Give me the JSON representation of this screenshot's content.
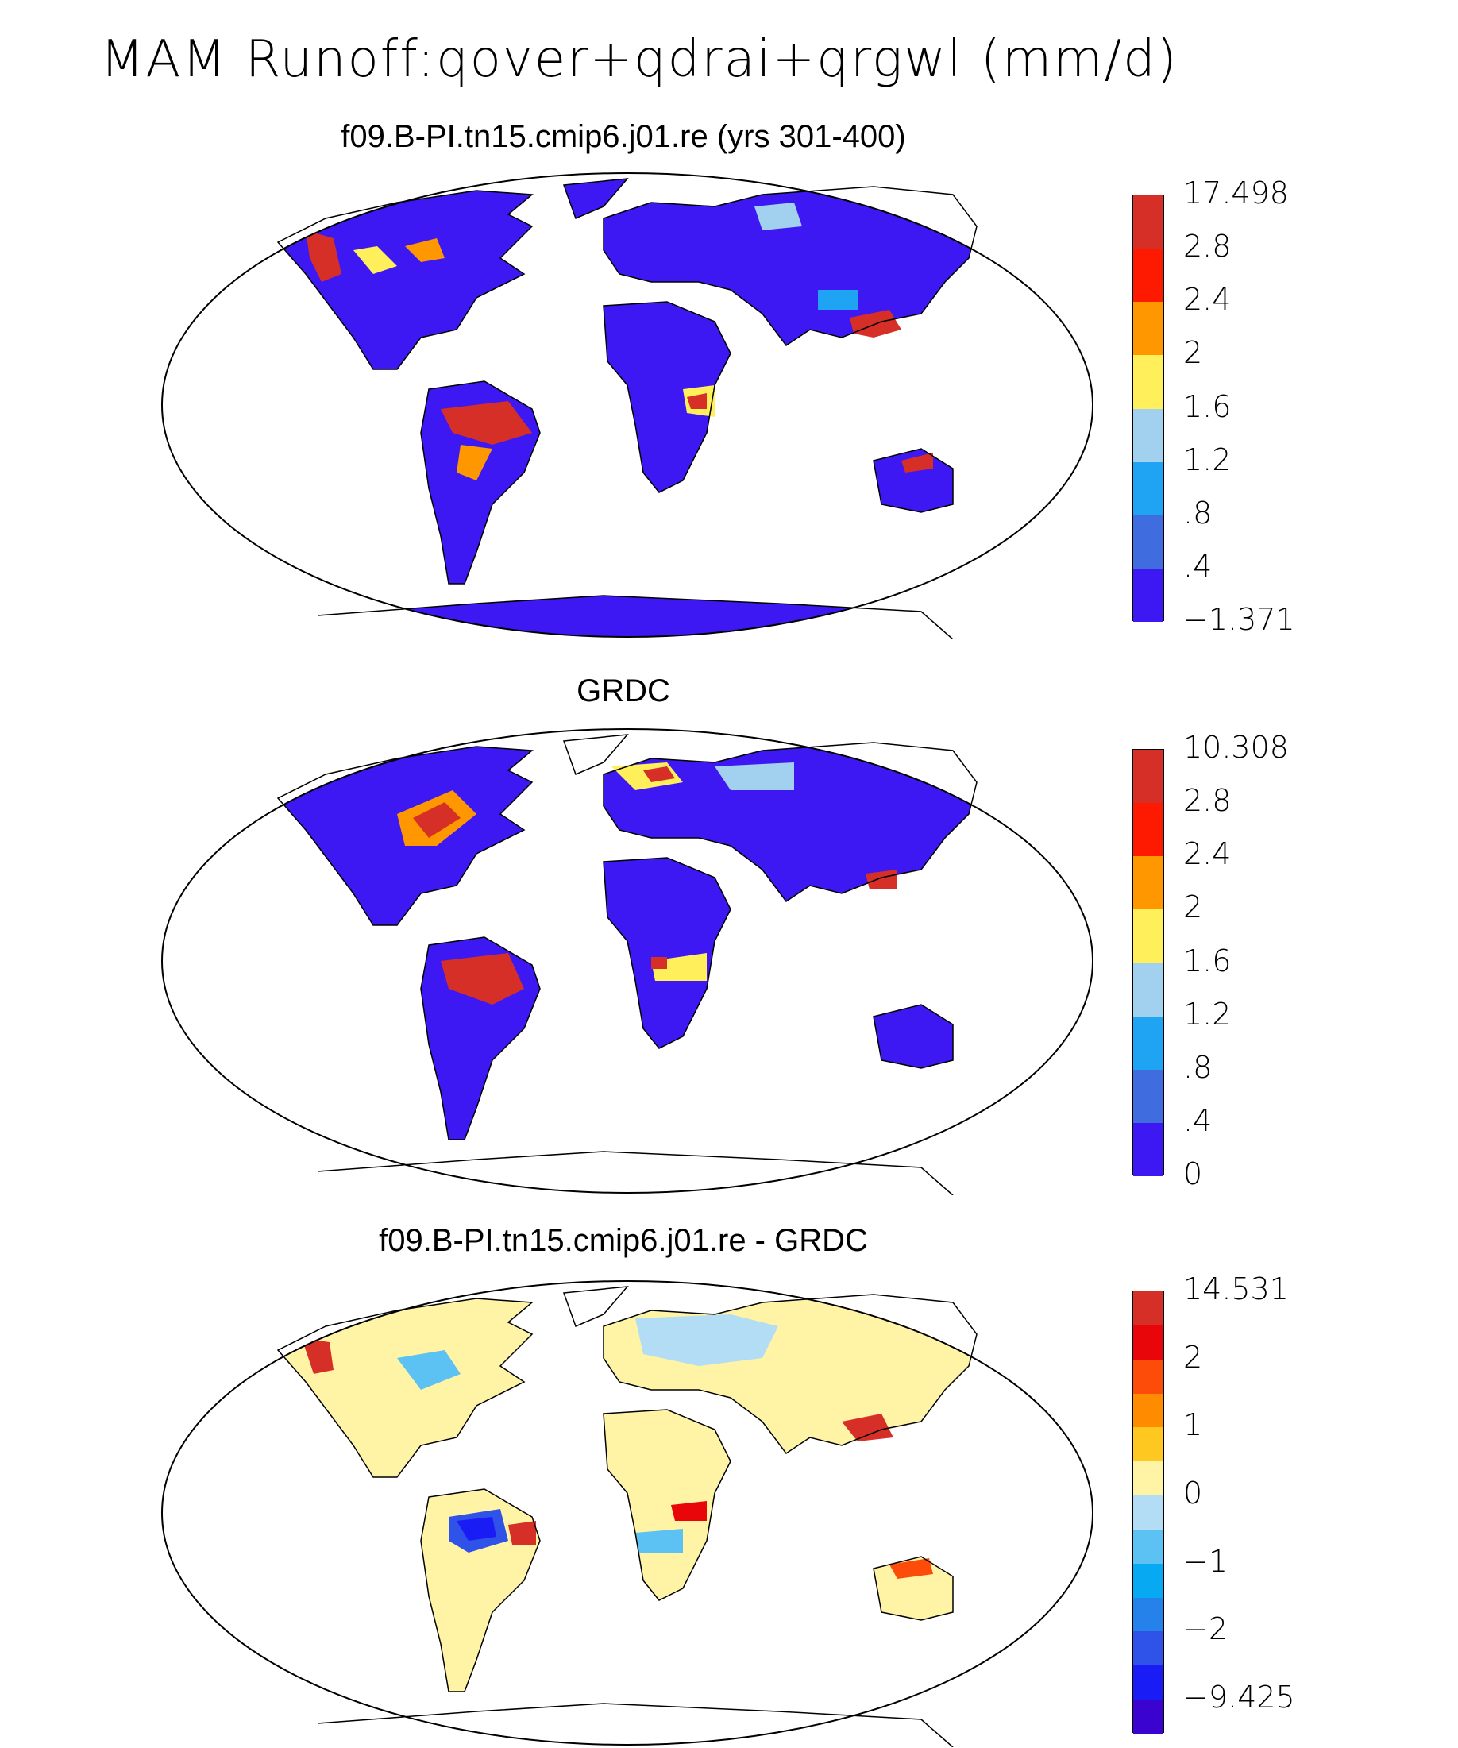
{
  "title": "MAM Runoff:qover+qdrai+qrgwl (mm/d)",
  "panels": [
    {
      "id": "model",
      "subtitle": "f09.B-PI.tn15.cmip6.j01.re (yrs 301-400)",
      "colorbar": {
        "colors": [
          "#d62f27",
          "#fd1a00",
          "#ff9800",
          "#ffef5a",
          "#a2d1ef",
          "#1ea4f3",
          "#3f6de0",
          "#3e18f2"
        ],
        "labels": [
          "17.498",
          "2.8",
          "2.4",
          "2",
          "1.6",
          "1.2",
          ".8",
          ".4",
          "−1.371"
        ]
      }
    },
    {
      "id": "obs",
      "subtitle": "GRDC",
      "colorbar": {
        "colors": [
          "#d62f27",
          "#fd1a00",
          "#ff9800",
          "#ffef5a",
          "#a2d1ef",
          "#1ea4f3",
          "#3f6de0",
          "#3e18f2"
        ],
        "labels": [
          "10.308",
          "2.8",
          "2.4",
          "2",
          "1.6",
          "1.2",
          ".8",
          ".4",
          "0"
        ]
      }
    },
    {
      "id": "diff",
      "subtitle": "f09.B-PI.tn15.cmip6.j01.re - GRDC",
      "colorbar": {
        "colors": [
          "#d62f27",
          "#e8060a",
          "#fd4b0a",
          "#ff8c00",
          "#ffc820",
          "#fff3a5",
          "#b3dcf5",
          "#5cc1f3",
          "#07aaf2",
          "#2582ea",
          "#2f52e8",
          "#1a1cf5",
          "#3a03cf"
        ],
        "labels": [
          "14.531",
          "",
          "2",
          "",
          "1",
          "",
          "0",
          "",
          "−1",
          "",
          "−2",
          "",
          "−9.425"
        ]
      }
    }
  ]
}
